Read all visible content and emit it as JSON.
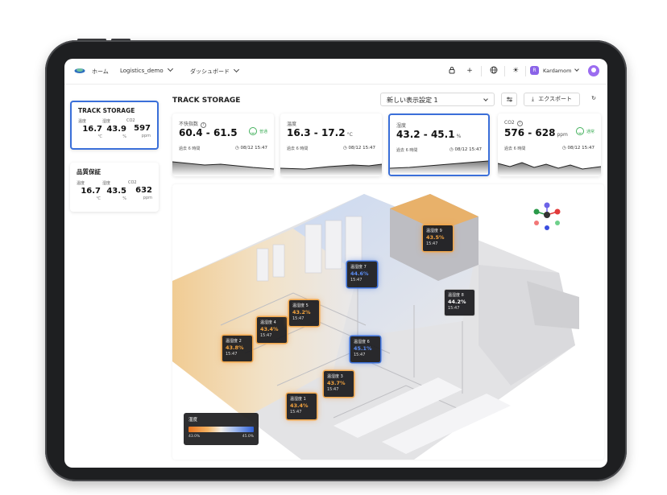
{
  "topbar": {
    "home_label": "ホーム",
    "project": "Logistics_demo",
    "dashboard": "ダッシュボード",
    "user_initial": "R",
    "user_name": "Kardamom"
  },
  "locations": [
    {
      "name": "TRACK STORAGE",
      "active": true,
      "metrics": [
        {
          "label": "温度",
          "value": "16.7",
          "unit": "℃"
        },
        {
          "label": "湿度",
          "value": "43.9",
          "unit": "%"
        },
        {
          "label": "CO2",
          "value": "597",
          "unit": "ppm"
        }
      ]
    },
    {
      "name": "品質保証",
      "active": false,
      "metrics": [
        {
          "label": "温度",
          "value": "16.7",
          "unit": "℃"
        },
        {
          "label": "湿度",
          "value": "43.5",
          "unit": "%"
        },
        {
          "label": "CO2",
          "value": "632",
          "unit": "ppm"
        }
      ]
    }
  ],
  "main": {
    "title": "TRACK STORAGE",
    "view_setting": "新しい表示設定 1",
    "export_label": "エクスポート"
  },
  "kpis": [
    {
      "label": "不快指数",
      "value": "60.4 - 61.5",
      "unit": "",
      "status": "普通",
      "period": "過去 6 時間",
      "time": "08/12 15:47",
      "active": false
    },
    {
      "label": "温度",
      "value": "16.3 - 17.2",
      "unit": "°C",
      "status": "",
      "period": "過去 6 時間",
      "time": "08/12 15:47",
      "active": false
    },
    {
      "label": "湿度",
      "value": "43.2 - 45.1",
      "unit": "%",
      "status": "",
      "period": "過去 6 時間",
      "time": "08/12 15:47",
      "active": true
    },
    {
      "label": "CO2",
      "value": "576 - 628",
      "unit": "ppm",
      "status": "通常",
      "period": "過去 6 時間",
      "time": "08/12 15:47",
      "active": false
    }
  ],
  "sensors": [
    {
      "name": "温湿度 1",
      "value": "43.4%",
      "time": "15:47",
      "tone": "warm"
    },
    {
      "name": "温湿度 2",
      "value": "43.8%",
      "time": "15:47",
      "tone": "warm"
    },
    {
      "name": "温湿度 3",
      "value": "43.7%",
      "time": "15:47",
      "tone": "warm"
    },
    {
      "name": "温湿度 4",
      "value": "43.4%",
      "time": "15:47",
      "tone": "warm"
    },
    {
      "name": "温湿度 5",
      "value": "43.2%",
      "time": "15:47",
      "tone": "warm"
    },
    {
      "name": "温湿度 6",
      "value": "45.1%",
      "time": "15:47",
      "tone": "cool"
    },
    {
      "name": "温湿度 7",
      "value": "44.6%",
      "time": "15:47",
      "tone": "cool"
    },
    {
      "name": "温湿度 8",
      "value": "44.2%",
      "time": "15:47",
      "tone": "neutral"
    },
    {
      "name": "温湿度 9",
      "value": "43.5%",
      "time": "15:47",
      "tone": "warm"
    }
  ],
  "legend": {
    "title": "湿度",
    "min": "43.0%",
    "max": "45.0%"
  },
  "colors": {
    "accent": "#3a6fd9",
    "ok": "#43b05c",
    "warm": "#f0a64a",
    "cool": "#3a6fd9"
  }
}
